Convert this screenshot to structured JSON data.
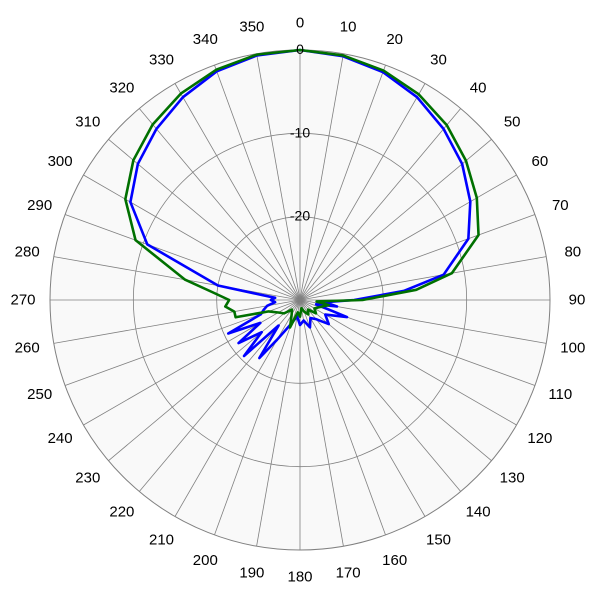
{
  "chart_data": {
    "type": "polar-line",
    "title": "",
    "angle_unit": "degrees",
    "angle_zero": "top",
    "angle_direction": "clockwise",
    "angle_step": 10,
    "angle_tick_labels": [
      "0",
      "10",
      "20",
      "30",
      "40",
      "50",
      "60",
      "70",
      "80",
      "90",
      "100",
      "110",
      "120",
      "130",
      "140",
      "150",
      "160",
      "170",
      "180",
      "190",
      "200",
      "210",
      "220",
      "230",
      "240",
      "250",
      "260",
      "270",
      "280",
      "290",
      "300",
      "310",
      "320",
      "330",
      "340",
      "350"
    ],
    "radial_range": [
      -30,
      0
    ],
    "radial_tick_values": [
      0,
      -10,
      -20
    ],
    "radial_tick_labels": [
      "0",
      "-10",
      "-20"
    ],
    "grid": true,
    "background": "#f9f9f9",
    "grid_color": "#808080",
    "series": [
      {
        "color": "#0000ff",
        "points": [
          [
            0,
            0
          ],
          [
            10,
            -0.3
          ],
          [
            20,
            -0.9
          ],
          [
            30,
            -1.9
          ],
          [
            40,
            -3.2
          ],
          [
            50,
            -4.6
          ],
          [
            60,
            -6.4
          ],
          [
            70,
            -8.5
          ],
          [
            80,
            -12.5
          ],
          [
            85,
            -17.5
          ],
          [
            90,
            -23.5
          ],
          [
            95,
            -27
          ],
          [
            100,
            -25.5
          ],
          [
            105,
            -28
          ],
          [
            110,
            -24
          ],
          [
            120,
            -26.5
          ],
          [
            130,
            -25.5
          ],
          [
            140,
            -27
          ],
          [
            150,
            -27.5
          ],
          [
            160,
            -26.5
          ],
          [
            170,
            -27.5
          ],
          [
            180,
            -27
          ],
          [
            190,
            -28
          ],
          [
            200,
            -27
          ],
          [
            210,
            -24.5
          ],
          [
            215,
            -21.5
          ],
          [
            220,
            -26
          ],
          [
            225,
            -20.5
          ],
          [
            230,
            -24
          ],
          [
            235,
            -21
          ],
          [
            240,
            -24.5
          ],
          [
            245,
            -20.5
          ],
          [
            250,
            -25
          ],
          [
            255,
            -25.5
          ],
          [
            260,
            -26
          ],
          [
            265,
            -27
          ],
          [
            270,
            -26.5
          ],
          [
            275,
            -27
          ],
          [
            280,
            -20
          ],
          [
            290,
            -10.5
          ],
          [
            300,
            -6.5
          ],
          [
            310,
            -4.6
          ],
          [
            320,
            -3.2
          ],
          [
            330,
            -1.9
          ],
          [
            340,
            -0.8
          ],
          [
            350,
            -0.2
          ],
          [
            360,
            0
          ]
        ]
      },
      {
        "color": "#007000",
        "points": [
          [
            0,
            0
          ],
          [
            10,
            -0.2
          ],
          [
            20,
            -0.7
          ],
          [
            30,
            -1.5
          ],
          [
            40,
            -2.6
          ],
          [
            50,
            -4.0
          ],
          [
            60,
            -5.5
          ],
          [
            70,
            -7.2
          ],
          [
            80,
            -11.5
          ],
          [
            85,
            -16
          ],
          [
            90,
            -22.5
          ],
          [
            95,
            -28
          ],
          [
            100,
            -26.5
          ],
          [
            110,
            -27.5
          ],
          [
            120,
            -28
          ],
          [
            130,
            -27.5
          ],
          [
            140,
            -28.5
          ],
          [
            150,
            -28
          ],
          [
            160,
            -28.5
          ],
          [
            170,
            -29
          ],
          [
            180,
            -28
          ],
          [
            190,
            -28.5
          ],
          [
            200,
            -26.5
          ],
          [
            210,
            -28
          ],
          [
            220,
            -28.5
          ],
          [
            230,
            -27.5
          ],
          [
            240,
            -27
          ],
          [
            250,
            -26
          ],
          [
            255,
            -22
          ],
          [
            260,
            -22
          ],
          [
            265,
            -21
          ],
          [
            270,
            -21.5
          ],
          [
            275,
            -19.5
          ],
          [
            280,
            -16
          ],
          [
            290,
            -9
          ],
          [
            300,
            -5.8
          ],
          [
            310,
            -3.9
          ],
          [
            320,
            -2.5
          ],
          [
            330,
            -1.4
          ],
          [
            340,
            -0.6
          ],
          [
            350,
            -0.1
          ],
          [
            360,
            0
          ]
        ]
      }
    ]
  }
}
